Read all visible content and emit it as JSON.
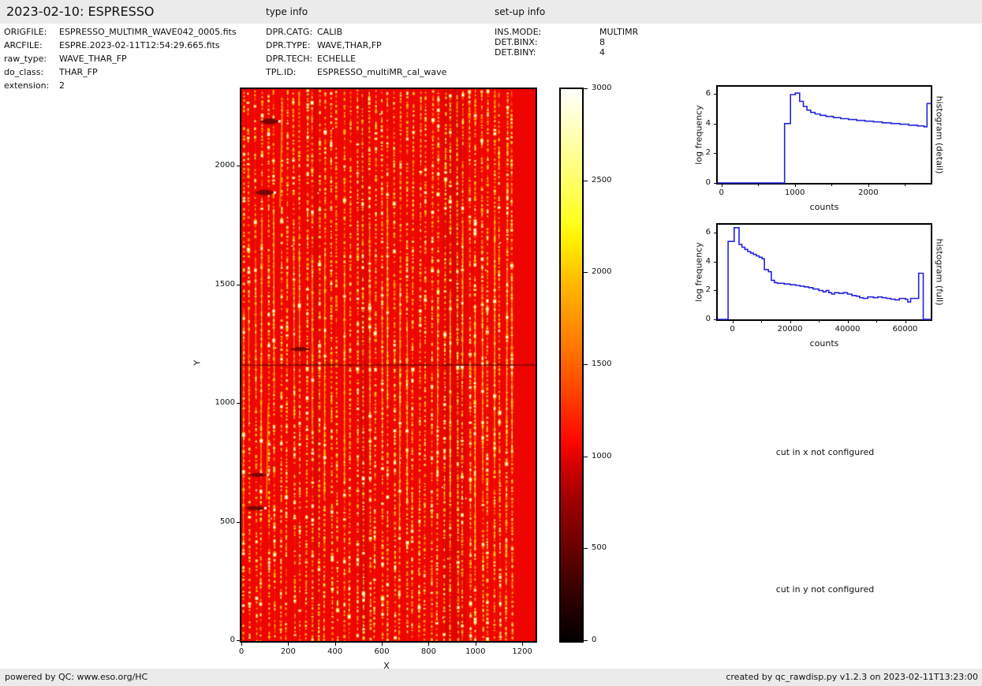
{
  "header": {
    "title": "2023-02-10: ESPRESSO",
    "type_info_label": "type info",
    "setup_info_label": "set-up info"
  },
  "file_info": {
    "rows": [
      {
        "label": "ORIGFILE:",
        "value": "ESPRESSO_MULTIMR_WAVE042_0005.fits"
      },
      {
        "label": "ARCFILE:",
        "value": "ESPRE.2023-02-11T12:54:29.665.fits"
      },
      {
        "label": "raw_type:",
        "value": "WAVE_THAR_FP"
      },
      {
        "label": "do_class:",
        "value": "THAR_FP"
      },
      {
        "label": "extension:",
        "value": "2"
      }
    ]
  },
  "type_info": {
    "rows": [
      {
        "label": "DPR.CATG:",
        "value": "CALIB"
      },
      {
        "label": "DPR.TYPE:",
        "value": "WAVE,THAR,FP"
      },
      {
        "label": "DPR.TECH:",
        "value": "ECHELLE"
      },
      {
        "label": "TPL.ID:",
        "value": "ESPRESSO_multiMR_cal_wave"
      }
    ]
  },
  "setup_info": {
    "rows": [
      {
        "label": "INS.MODE:",
        "value": "MULTIMR"
      },
      {
        "label": "DET.BINX:",
        "value": "8"
      },
      {
        "label": "DET.BINY:",
        "value": "4"
      }
    ]
  },
  "notes": {
    "cut_x": "cut in x not configured",
    "cut_y": "cut in y not configured"
  },
  "footer": {
    "left": "powered by QC: www.eso.org/HC",
    "right": "created by qc_rawdisp.py v1.2.3 on 2023-02-11T13:23:00"
  },
  "colors": {
    "image_background": "#ee0400",
    "histogram_line": "#2222dd",
    "panel_gray": "#ebebeb",
    "colormap_hot_anchors": [
      "#000000",
      "#ff0000",
      "#ffff00",
      "#ffffff"
    ]
  },
  "chart_data": [
    {
      "id": "raw_image",
      "type": "heatmap",
      "title": "",
      "xlabel": "X",
      "ylabel": "Y",
      "xlim": [
        0,
        1250
      ],
      "ylim": [
        0,
        2326
      ],
      "xticks": [
        0,
        200,
        400,
        600,
        800,
        1000,
        1200
      ],
      "yticks": [
        0,
        500,
        1000,
        1500,
        2000
      ],
      "colormap": "hot",
      "colorbar": {
        "range": [
          0,
          3000
        ],
        "ticks": [
          0,
          500,
          1000,
          1500,
          2000,
          2500,
          3000
        ]
      },
      "content": "ESPRESSO raw WAVE,THAR,FP calibration frame: ~44 vertical echelle orders of dotted FP/ThAr emission lines (yellow-white, ~1500-3000 counts) on a red ~1100-count background; orders span x=10-1150 and get denser toward the right; dark detector gap row at y=1165; dark blemishes near the left edge; scattered saturated white spots",
      "features": {
        "n_orders": 44,
        "orders_x_range": [
          10,
          1150
        ],
        "gap_row_y": 1165,
        "blemishes": [
          [
            120,
            2190
          ],
          [
            100,
            1890
          ],
          [
            250,
            1230
          ],
          [
            70,
            700
          ],
          [
            60,
            560
          ]
        ]
      }
    },
    {
      "id": "histogram_detail",
      "type": "line",
      "title": "",
      "xlabel": "counts",
      "ylabel": "log frequency",
      "right_label": "histogram (detail)",
      "xlim": [
        -50,
        2850
      ],
      "ylim": [
        0,
        6.48
      ],
      "xticks_major": [
        0,
        1000,
        2000
      ],
      "xticks_minor": [
        500,
        1500,
        2500
      ],
      "yticks": [
        0,
        2,
        4,
        6
      ],
      "steps": [
        [
          860,
          4.0
        ],
        [
          940,
          5.95
        ],
        [
          1005,
          6.05
        ],
        [
          1065,
          5.5
        ],
        [
          1115,
          5.15
        ],
        [
          1165,
          4.9
        ],
        [
          1215,
          4.75
        ],
        [
          1275,
          4.65
        ],
        [
          1345,
          4.55
        ],
        [
          1425,
          4.48
        ],
        [
          1525,
          4.4
        ],
        [
          1625,
          4.33
        ],
        [
          1730,
          4.27
        ],
        [
          1840,
          4.21
        ],
        [
          1955,
          4.16
        ],
        [
          2070,
          4.11
        ],
        [
          2190,
          4.05
        ],
        [
          2310,
          4.0
        ],
        [
          2430,
          3.95
        ],
        [
          2550,
          3.89
        ],
        [
          2670,
          3.84
        ],
        [
          2760,
          3.78
        ],
        [
          2800,
          5.35
        ]
      ]
    },
    {
      "id": "histogram_full",
      "type": "line",
      "title": "",
      "xlabel": "counts",
      "ylabel": "log frequency",
      "right_label": "histogram (full)",
      "xlim": [
        -5100,
        68900
      ],
      "ylim": [
        0,
        6.56
      ],
      "xticks_major": [
        0,
        20000,
        40000,
        60000
      ],
      "xticks_minor": [
        10000,
        30000,
        50000
      ],
      "yticks": [
        0,
        2,
        4,
        6
      ],
      "steps": [
        [
          -1500,
          5.4
        ],
        [
          600,
          6.35
        ],
        [
          2300,
          5.2
        ],
        [
          3300,
          5.0
        ],
        [
          4300,
          4.85
        ],
        [
          5300,
          4.7
        ],
        [
          6300,
          4.6
        ],
        [
          7300,
          4.5
        ],
        [
          8300,
          4.4
        ],
        [
          9300,
          4.3
        ],
        [
          10300,
          4.2
        ],
        [
          11100,
          3.45
        ],
        [
          12500,
          3.3
        ],
        [
          13500,
          2.7
        ],
        [
          14600,
          2.55
        ],
        [
          15600,
          2.5
        ],
        [
          18000,
          2.45
        ],
        [
          20000,
          2.4
        ],
        [
          22000,
          2.35
        ],
        [
          23500,
          2.3
        ],
        [
          25000,
          2.25
        ],
        [
          26500,
          2.2
        ],
        [
          28000,
          2.1
        ],
        [
          30000,
          2.0
        ],
        [
          31500,
          1.9
        ],
        [
          32500,
          2.0
        ],
        [
          33500,
          1.85
        ],
        [
          34500,
          1.75
        ],
        [
          35500,
          1.85
        ],
        [
          37000,
          1.8
        ],
        [
          38500,
          1.85
        ],
        [
          40000,
          1.75
        ],
        [
          41500,
          1.65
        ],
        [
          43000,
          1.6
        ],
        [
          44200,
          1.5
        ],
        [
          45500,
          1.45
        ],
        [
          47000,
          1.55
        ],
        [
          49000,
          1.5
        ],
        [
          50500,
          1.55
        ],
        [
          52000,
          1.5
        ],
        [
          53500,
          1.45
        ],
        [
          55000,
          1.4
        ],
        [
          56500,
          1.35
        ],
        [
          58000,
          1.45
        ],
        [
          60000,
          1.4
        ],
        [
          60900,
          1.2
        ],
        [
          61900,
          1.45
        ],
        [
          64700,
          3.2
        ],
        [
          66300,
          0
        ]
      ]
    }
  ]
}
